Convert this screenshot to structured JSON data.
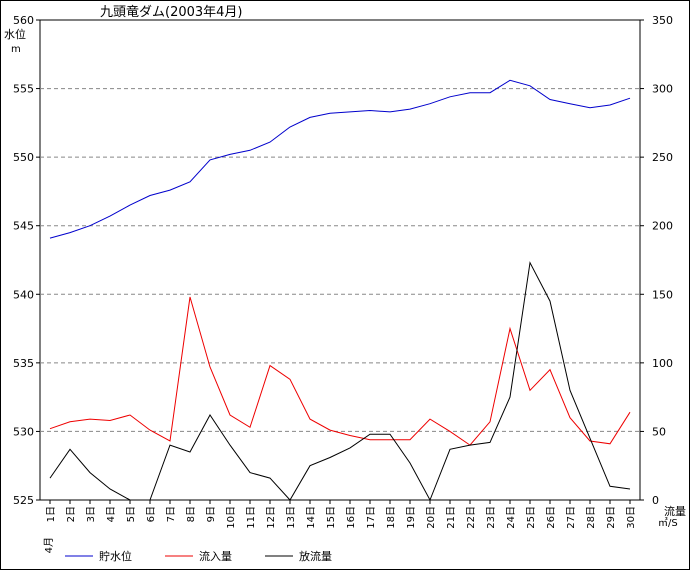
{
  "chart_data": {
    "type": "line",
    "title": "九頭竜ダム(2003年4月)",
    "left_axis": {
      "label": "水位",
      "unit": "m",
      "ylim": [
        525,
        560
      ],
      "ticks": [
        525,
        530,
        535,
        540,
        545,
        550,
        555,
        560
      ]
    },
    "right_axis": {
      "label": "流量",
      "unit": "㎥/S",
      "ylim": [
        0,
        350
      ],
      "ticks": [
        0,
        50,
        100,
        150,
        200,
        250,
        300,
        350
      ]
    },
    "month_label": "4月",
    "categories": [
      "1日",
      "2日",
      "3日",
      "4日",
      "5日",
      "6日",
      "7日",
      "8日",
      "9日",
      "10日",
      "11日",
      "12日",
      "13日",
      "14日",
      "15日",
      "16日",
      "17日",
      "18日",
      "19日",
      "20日",
      "21日",
      "22日",
      "23日",
      "24日",
      "25日",
      "26日",
      "27日",
      "28日",
      "29日",
      "30日"
    ],
    "grid": true,
    "legend_position": "bottom",
    "series": [
      {
        "name": "貯水位",
        "axis": "left",
        "color": "#0000cc",
        "values": [
          544.1,
          544.5,
          545.0,
          545.7,
          546.5,
          547.2,
          547.6,
          548.2,
          549.8,
          550.2,
          550.5,
          551.1,
          552.2,
          552.9,
          553.2,
          553.3,
          553.4,
          553.3,
          553.5,
          553.9,
          554.4,
          554.7,
          554.7,
          555.6,
          555.2,
          554.2,
          553.9,
          553.6,
          553.8,
          554.3
        ]
      },
      {
        "name": "流入量",
        "axis": "right",
        "color": "#ee0000",
        "values": [
          52,
          57,
          59,
          58,
          62,
          51,
          43,
          148,
          97,
          62,
          53,
          98,
          88,
          59,
          51,
          47,
          44,
          44,
          44,
          59,
          50,
          40,
          57,
          125,
          80,
          95,
          60,
          43,
          41,
          64
        ]
      },
      {
        "name": "放流量",
        "axis": "right",
        "color": "#000000",
        "values": [
          16,
          37,
          20,
          8,
          0,
          0,
          40,
          35,
          62,
          40,
          20,
          16,
          0,
          25,
          31,
          38,
          48,
          48,
          27,
          0,
          37,
          40,
          42,
          75,
          173,
          145,
          80,
          45,
          10,
          8
        ]
      }
    ]
  }
}
